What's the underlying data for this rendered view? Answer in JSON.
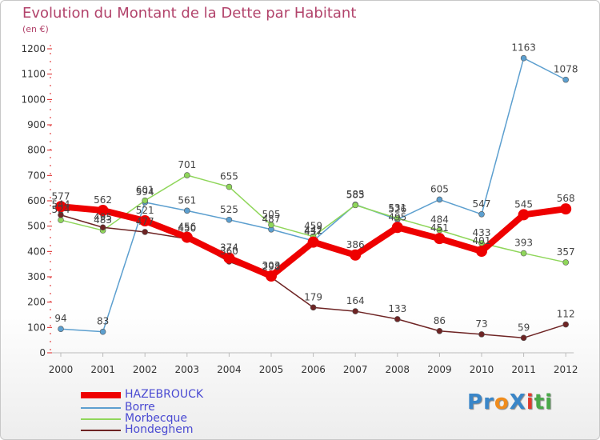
{
  "title": "Evolution du Montant de la Dette par Habitant",
  "unit_label": "(en €)",
  "logo": {
    "text": "ProXiti",
    "letters": [
      {
        "ch": "P",
        "color": "#3a86c8"
      },
      {
        "ch": "r",
        "color": "#3a86c8"
      },
      {
        "ch": "o",
        "color": "#f08c1c"
      },
      {
        "ch": "X",
        "color": "#3a86c8"
      },
      {
        "ch": "i",
        "color": "#e2392c"
      },
      {
        "ch": "t",
        "color": "#4aa84a"
      },
      {
        "ch": "i",
        "color": "#4aa84a"
      }
    ]
  },
  "chart_data": {
    "type": "line",
    "title": "Evolution du Montant de la Dette par Habitant",
    "ylabel": "(en €)",
    "xlabel": "",
    "ylim": [
      0,
      1200
    ],
    "yticks": [
      0,
      100,
      200,
      300,
      400,
      500,
      600,
      700,
      800,
      900,
      1000,
      1100,
      1200
    ],
    "categories": [
      "2000",
      "2001",
      "2002",
      "2003",
      "2004",
      "2005",
      "2006",
      "2007",
      "2008",
      "2009",
      "2010",
      "2011",
      "2012"
    ],
    "grid": false,
    "legend_position": "bottom-left",
    "series": [
      {
        "name": "HAZEBROUCK",
        "color": "#ee0000",
        "emphasis": true,
        "values": [
          577,
          562,
          521,
          456,
          374,
          303,
          437,
          386,
          495,
          451,
          401,
          545,
          568
        ],
        "labels": [
          "577",
          "562",
          "521",
          "456",
          "374",
          "303",
          "437",
          "386",
          "495",
          "451",
          "401",
          "545",
          "568"
        ]
      },
      {
        "name": "Borre",
        "color": "#5c9fcf",
        "emphasis": false,
        "values": [
          94,
          83,
          594,
          561,
          525,
          487,
          442,
          585,
          526,
          605,
          547,
          1163,
          1078
        ],
        "labels": [
          "94",
          "83",
          "594",
          "561",
          "525",
          "487",
          "442",
          "585",
          "526",
          "605",
          "547",
          "1163",
          "1078"
        ]
      },
      {
        "name": "Morbecque",
        "color": "#8fd65a",
        "emphasis": false,
        "values": [
          524,
          483,
          601,
          701,
          655,
          505,
          459,
          583,
          531,
          484,
          433,
          393,
          357
        ],
        "labels": [
          "524",
          "483",
          "601",
          "701",
          "655",
          "505",
          "459",
          "583",
          "531",
          "484",
          "433",
          "393",
          "357"
        ]
      },
      {
        "name": "Hondeghem",
        "color": "#6e2424",
        "emphasis": false,
        "values": [
          544,
          495,
          477,
          450,
          360,
          298,
          179,
          164,
          133,
          86,
          73,
          59,
          112
        ],
        "labels": [
          "544",
          "495",
          "477",
          "450",
          "360",
          "298",
          "179",
          "164",
          "133",
          "86",
          "73",
          "59",
          "112"
        ]
      }
    ]
  }
}
